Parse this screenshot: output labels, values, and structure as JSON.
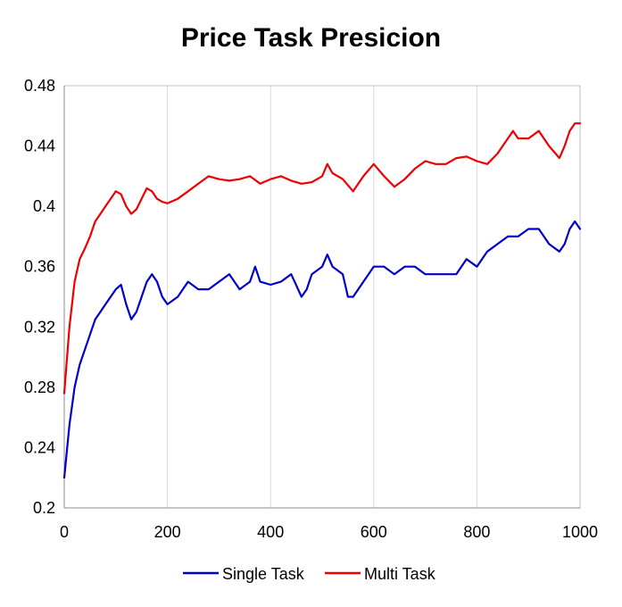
{
  "chart_data": {
    "type": "line",
    "title": "Price Task Presicion",
    "xlabel": "",
    "ylabel": "",
    "xlim": [
      0,
      1000
    ],
    "ylim": [
      0.2,
      0.48
    ],
    "xticks": [
      0,
      200,
      400,
      600,
      800,
      1000
    ],
    "yticks": [
      0.2,
      0.24,
      0.28,
      0.32,
      0.36,
      0.4,
      0.44,
      0.48
    ],
    "xtick_labels": [
      "0",
      "200",
      "400",
      "600",
      "800",
      "1000"
    ],
    "ytick_labels": [
      "0.2",
      "0.24",
      "0.28",
      "0.32",
      "0.36",
      "0.4",
      "0.44",
      "0.48"
    ],
    "grid": "vertical",
    "legend_position": "bottom",
    "series": [
      {
        "name": "Single Task",
        "color": "#0000cc",
        "x": [
          0,
          10,
          20,
          30,
          40,
          50,
          60,
          70,
          80,
          90,
          100,
          110,
          120,
          130,
          140,
          150,
          160,
          170,
          180,
          190,
          200,
          220,
          240,
          260,
          280,
          300,
          320,
          340,
          360,
          370,
          380,
          400,
          420,
          440,
          460,
          470,
          480,
          500,
          510,
          520,
          540,
          550,
          560,
          580,
          600,
          620,
          640,
          660,
          680,
          700,
          720,
          740,
          760,
          780,
          800,
          820,
          840,
          860,
          880,
          900,
          920,
          940,
          960,
          970,
          980,
          990,
          1000
        ],
        "values": [
          0.22,
          0.255,
          0.28,
          0.295,
          0.305,
          0.315,
          0.325,
          0.33,
          0.335,
          0.34,
          0.345,
          0.348,
          0.335,
          0.325,
          0.33,
          0.34,
          0.35,
          0.355,
          0.35,
          0.34,
          0.335,
          0.34,
          0.35,
          0.345,
          0.345,
          0.35,
          0.355,
          0.345,
          0.35,
          0.36,
          0.35,
          0.348,
          0.35,
          0.355,
          0.34,
          0.345,
          0.355,
          0.36,
          0.368,
          0.36,
          0.355,
          0.34,
          0.34,
          0.35,
          0.36,
          0.36,
          0.355,
          0.36,
          0.36,
          0.355,
          0.355,
          0.355,
          0.355,
          0.365,
          0.36,
          0.37,
          0.375,
          0.38,
          0.38,
          0.385,
          0.385,
          0.375,
          0.37,
          0.375,
          0.385,
          0.39,
          0.385
        ]
      },
      {
        "name": "Multi Task",
        "color": "#ee0000",
        "x": [
          0,
          10,
          20,
          30,
          40,
          50,
          60,
          70,
          80,
          90,
          100,
          110,
          120,
          130,
          140,
          150,
          160,
          170,
          180,
          190,
          200,
          220,
          240,
          260,
          280,
          300,
          320,
          340,
          360,
          380,
          400,
          420,
          440,
          460,
          480,
          500,
          510,
          520,
          540,
          560,
          580,
          600,
          620,
          640,
          660,
          680,
          700,
          720,
          740,
          760,
          780,
          800,
          820,
          840,
          860,
          870,
          880,
          900,
          920,
          940,
          960,
          970,
          980,
          990,
          1000
        ],
        "values": [
          0.276,
          0.32,
          0.35,
          0.365,
          0.372,
          0.38,
          0.39,
          0.395,
          0.4,
          0.405,
          0.41,
          0.408,
          0.4,
          0.395,
          0.398,
          0.405,
          0.412,
          0.41,
          0.405,
          0.403,
          0.402,
          0.405,
          0.41,
          0.415,
          0.42,
          0.418,
          0.417,
          0.418,
          0.42,
          0.415,
          0.418,
          0.42,
          0.417,
          0.415,
          0.416,
          0.42,
          0.428,
          0.422,
          0.418,
          0.41,
          0.42,
          0.428,
          0.42,
          0.413,
          0.418,
          0.425,
          0.43,
          0.428,
          0.428,
          0.432,
          0.433,
          0.43,
          0.428,
          0.435,
          0.445,
          0.45,
          0.445,
          0.445,
          0.45,
          0.44,
          0.432,
          0.44,
          0.45,
          0.455,
          0.455
        ]
      }
    ]
  }
}
